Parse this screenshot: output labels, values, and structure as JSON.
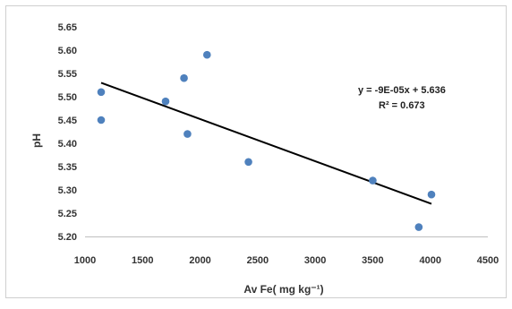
{
  "chart_data": {
    "type": "scatter",
    "title": "",
    "xlabel": "Av Fe( mg kg⁻¹)",
    "ylabel": "pH",
    "xlim": [
      1000,
      4500
    ],
    "ylim": [
      5.2,
      5.65
    ],
    "x_ticks": [
      "1000",
      "1500",
      "2000",
      "2500",
      "3000",
      "3500",
      "4000",
      "4500"
    ],
    "y_ticks": [
      "5.20",
      "5.25",
      "5.30",
      "5.35",
      "5.40",
      "5.45",
      "5.50",
      "5.55",
      "5.60",
      "5.65"
    ],
    "grid": false,
    "point_color": "#4f81bd",
    "trendline_color": "#000000",
    "series": [
      {
        "points": [
          {
            "x": 1140,
            "y": 5.51
          },
          {
            "x": 1140,
            "y": 5.45
          },
          {
            "x": 1700,
            "y": 5.49
          },
          {
            "x": 1860,
            "y": 5.54
          },
          {
            "x": 1890,
            "y": 5.42
          },
          {
            "x": 2060,
            "y": 5.59
          },
          {
            "x": 2420,
            "y": 5.36
          },
          {
            "x": 3500,
            "y": 5.32
          },
          {
            "x": 3900,
            "y": 5.22
          },
          {
            "x": 4010,
            "y": 5.29
          }
        ]
      }
    ],
    "trendline": {
      "type": "linear",
      "x_range": [
        1140,
        4010
      ],
      "y_values": [
        5.53,
        5.27
      ]
    },
    "annotations": {
      "equation": "y = -9E-05x + 5.636",
      "r_squared": "R² = 0.673"
    }
  }
}
